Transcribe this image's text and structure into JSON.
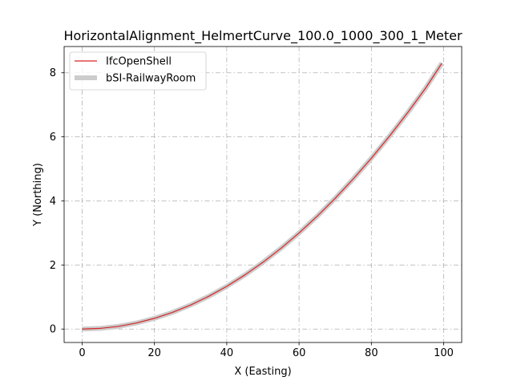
{
  "chart_data": {
    "type": "line",
    "title": "HorizontalAlignment_HelmertCurve_100.0_1000_300_1_Meter",
    "xlabel": "X (Easting)",
    "ylabel": "Y (Northing)",
    "xlim": [
      -4.98,
      104.98
    ],
    "ylim": [
      -0.42,
      8.82
    ],
    "xticks": [
      0,
      20,
      40,
      60,
      80,
      100
    ],
    "yticks": [
      0,
      2,
      4,
      6,
      8
    ],
    "grid": true,
    "legend_position": "upper-left",
    "series": [
      {
        "name": "IfcOpenShell",
        "color": "#d62728",
        "x": [
          0,
          5,
          10,
          15,
          20,
          25,
          30,
          35,
          40,
          45,
          50,
          55,
          60,
          65,
          70,
          75,
          80,
          85,
          90,
          95,
          99.5
        ],
        "y": [
          0,
          0.021,
          0.083,
          0.188,
          0.334,
          0.521,
          0.75,
          1.021,
          1.333,
          1.688,
          2.083,
          2.521,
          3.0,
          3.521,
          4.083,
          4.688,
          5.333,
          6.021,
          6.75,
          7.521,
          8.3
        ]
      },
      {
        "name": "bSI-RailwayRoom",
        "color": "#cccccc",
        "x": [
          0,
          5,
          10,
          15,
          20,
          25,
          30,
          35,
          40,
          45,
          50,
          55,
          60,
          65,
          70,
          75,
          80,
          85,
          90,
          95,
          99.5
        ],
        "y": [
          0,
          0.021,
          0.083,
          0.188,
          0.334,
          0.521,
          0.75,
          1.021,
          1.333,
          1.688,
          2.083,
          2.521,
          3.0,
          3.521,
          4.083,
          4.688,
          5.333,
          6.021,
          6.75,
          7.521,
          8.3
        ]
      }
    ]
  }
}
